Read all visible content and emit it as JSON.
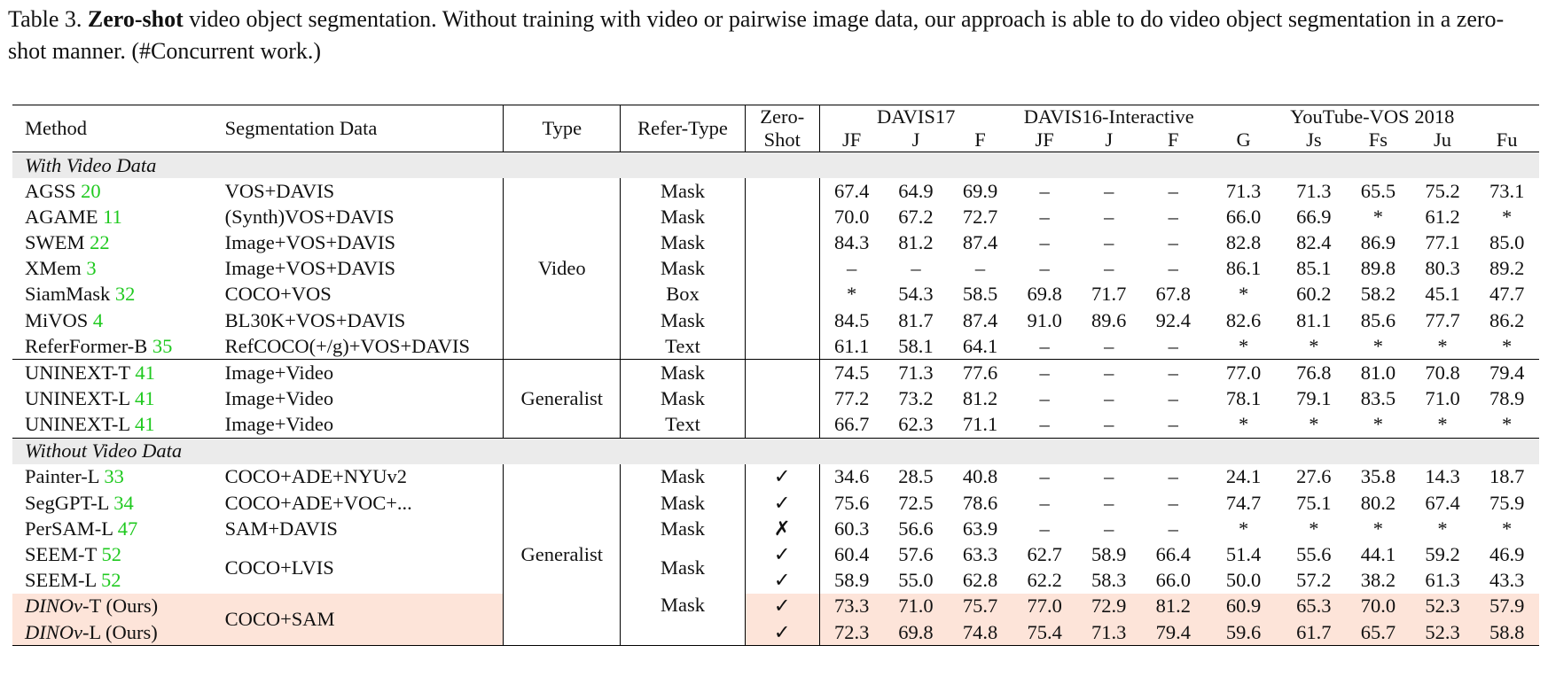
{
  "caption": {
    "prefix": "Table 3. ",
    "bold": "Zero-shot",
    "text": " video object segmentation. Without training with video or pairwise image data, our approach is able to do video object segmentation in a zero-shot manner. (#Concurrent work.)"
  },
  "header": {
    "method": "Method",
    "seg_data": "Segmentation Data",
    "type": "Type",
    "refer_type": "Refer-Type",
    "zero_shot_1": "Zero-",
    "zero_shot_2": "Shot",
    "davis17": "DAVIS17",
    "davis16": "DAVIS16-Interactive",
    "ytvos": "YouTube-VOS 2018",
    "davis_cols": [
      "JF",
      "J",
      "F"
    ],
    "yt_cols": [
      "G",
      "Js",
      "Fs",
      "Ju",
      "Fu"
    ]
  },
  "sections": {
    "with_video": "With Video Data",
    "without_video": "Without Video Data"
  },
  "types": {
    "video": "Video",
    "generalist_a": "Generalist",
    "generalist_b": "Generalist"
  },
  "rows": [
    {
      "name": "AGSS ",
      "ref": "20",
      "data": "VOS+DAVIS",
      "refer": "Mask",
      "zs": "",
      "vals": [
        "67.4",
        "64.9",
        "69.9",
        "–",
        "–",
        "–",
        "71.3",
        "71.3",
        "65.5",
        "75.2",
        "73.1"
      ]
    },
    {
      "name": "AGAME ",
      "ref": "11",
      "data": "(Synth)VOS+DAVIS",
      "refer": "Mask",
      "zs": "",
      "vals": [
        "70.0",
        "67.2",
        "72.7",
        "–",
        "–",
        "–",
        "66.0",
        "66.9",
        "*",
        "61.2",
        "*"
      ]
    },
    {
      "name": "SWEM ",
      "ref": "22",
      "data": "Image+VOS+DAVIS",
      "refer": "Mask",
      "zs": "",
      "vals": [
        "84.3",
        "81.2",
        "87.4",
        "–",
        "–",
        "–",
        "82.8",
        "82.4",
        "86.9",
        "77.1",
        "85.0"
      ]
    },
    {
      "name": "XMem ",
      "ref": "3",
      "data": "Image+VOS+DAVIS",
      "refer": "Mask",
      "zs": "",
      "vals": [
        "–",
        "–",
        "–",
        "–",
        "–",
        "–",
        "86.1",
        "85.1",
        "89.8",
        "80.3",
        "89.2"
      ]
    },
    {
      "name": "SiamMask ",
      "ref": "32",
      "data": "COCO+VOS",
      "refer": "Box",
      "zs": "",
      "vals": [
        "*",
        "54.3",
        "58.5",
        "69.8",
        "71.7",
        "67.8",
        "*",
        "60.2",
        "58.2",
        "45.1",
        "47.7"
      ]
    },
    {
      "name": "MiVOS ",
      "ref": "4",
      "data": "BL30K+VOS+DAVIS",
      "refer": "Mask",
      "zs": "",
      "vals": [
        "84.5",
        "81.7",
        "87.4",
        "91.0",
        "89.6",
        "92.4",
        "82.6",
        "81.1",
        "85.6",
        "77.7",
        "86.2"
      ]
    },
    {
      "name": "ReferFormer-B ",
      "ref": "35",
      "data": "RefCOCO(+/g)+VOS+DAVIS",
      "refer": "Text",
      "zs": "",
      "vals": [
        "61.1",
        "58.1",
        "64.1",
        "–",
        "–",
        "–",
        "*",
        "*",
        "*",
        "*",
        "*"
      ]
    },
    {
      "name": "UNINEXT-T ",
      "ref": "41",
      "data": "Image+Video",
      "refer": "Mask",
      "zs": "",
      "vals": [
        "74.5",
        "71.3",
        "77.6",
        "–",
        "–",
        "–",
        "77.0",
        "76.8",
        "81.0",
        "70.8",
        "79.4"
      ]
    },
    {
      "name": "UNINEXT-L ",
      "ref": "41",
      "data": "Image+Video",
      "refer": "Mask",
      "zs": "",
      "vals": [
        "77.2",
        "73.2",
        "81.2",
        "–",
        "–",
        "–",
        "78.1",
        "79.1",
        "83.5",
        "71.0",
        "78.9"
      ]
    },
    {
      "name": "UNINEXT-L ",
      "ref": "41",
      "data": "Image+Video",
      "refer": "Text",
      "zs": "",
      "vals": [
        "66.7",
        "62.3",
        "71.1",
        "–",
        "–",
        "–",
        "*",
        "*",
        "*",
        "*",
        "*"
      ]
    },
    {
      "name": "Painter-L ",
      "ref": "33",
      "data": "COCO+ADE+NYUv2",
      "refer": "Mask",
      "zs": "✓",
      "vals": [
        "34.6",
        "28.5",
        "40.8",
        "–",
        "–",
        "–",
        "24.1",
        "27.6",
        "35.8",
        "14.3",
        "18.7"
      ]
    },
    {
      "name": "SegGPT-L ",
      "ref": "34",
      "data": "COCO+ADE+VOC+...",
      "refer": "Mask",
      "zs": "✓",
      "vals": [
        "75.6",
        "72.5",
        "78.6",
        "–",
        "–",
        "–",
        "74.7",
        "75.1",
        "80.2",
        "67.4",
        "75.9"
      ]
    },
    {
      "name": "PerSAM-L ",
      "ref": "47",
      "data": "SAM+DAVIS",
      "refer": "Mask",
      "zs": "✗",
      "vals": [
        "60.3",
        "56.6",
        "63.9",
        "–",
        "–",
        "–",
        "*",
        "*",
        "*",
        "*",
        "*"
      ]
    },
    {
      "name": "SEEM-T ",
      "ref": "52",
      "zs": "✓",
      "vals": [
        "60.4",
        "57.6",
        "63.3",
        "62.7",
        "58.9",
        "66.4",
        "51.4",
        "55.6",
        "44.1",
        "59.2",
        "46.9"
      ]
    },
    {
      "name": "SEEM-L ",
      "ref": "52",
      "zs": "✓",
      "vals": [
        "58.9",
        "55.0",
        "62.8",
        "62.2",
        "58.3",
        "66.0",
        "50.0",
        "57.2",
        "38.2",
        "61.3",
        "43.3"
      ]
    },
    {
      "name_it": "DINOv",
      "name_rest": "-T (Ours)",
      "zs": "✓",
      "vals": [
        "73.3",
        "71.0",
        "75.7",
        "77.0",
        "72.9",
        "81.2",
        "60.9",
        "65.3",
        "70.0",
        "52.3",
        "57.9"
      ]
    },
    {
      "name_it": "DINOv",
      "name_rest": "-L (Ours)",
      "zs": "✓",
      "vals": [
        "72.3",
        "69.8",
        "74.8",
        "75.4",
        "71.3",
        "79.4",
        "59.6",
        "61.7",
        "65.7",
        "52.3",
        "58.8"
      ]
    }
  ],
  "merged": {
    "seem_data": "COCO+LVIS",
    "seem_refer": "Mask",
    "dinov_data": "COCO+SAM",
    "dinov_refer": "Mask"
  },
  "colors": {
    "citation": "#1fc91f",
    "highlight": "#fde4d9",
    "section_bg": "#ebebeb"
  }
}
